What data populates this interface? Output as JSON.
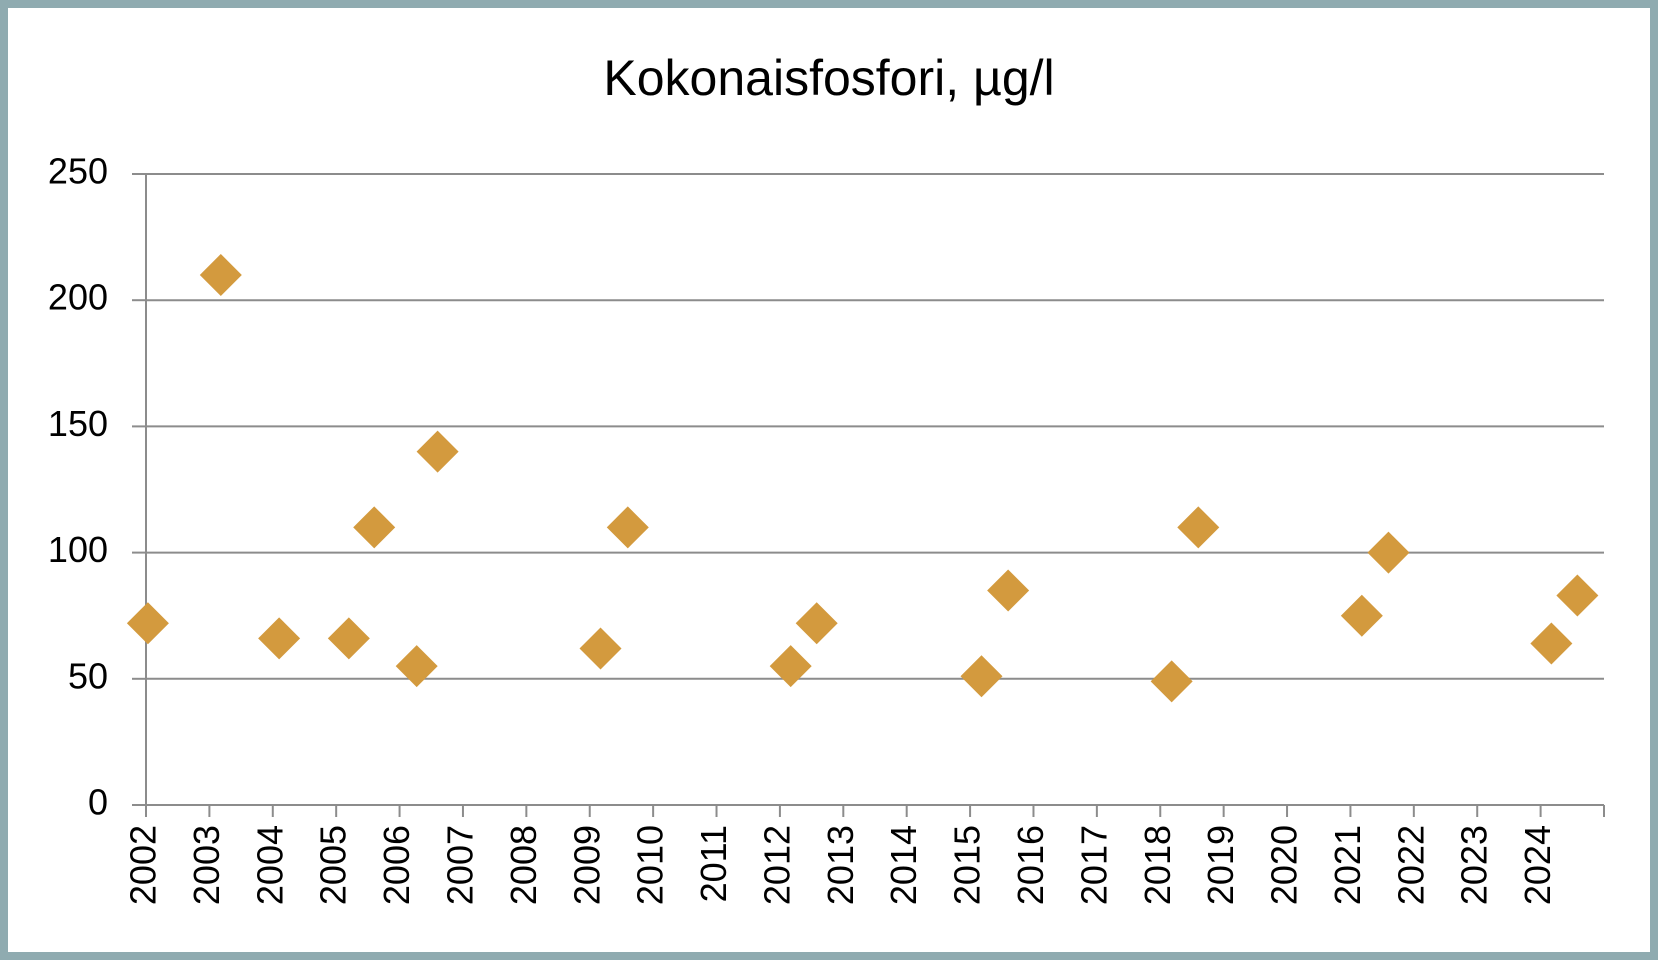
{
  "chart_data": {
    "type": "scatter",
    "title": "Kokonaisfosfori, µg/l",
    "series": [
      {
        "name": "Kokonaisfosfori",
        "color": "#d39a3e",
        "x": [
          2002.03,
          2003.18,
          2004.1,
          2005.2,
          2005.6,
          2006.27,
          2006.6,
          2009.17,
          2009.6,
          2012.17,
          2012.58,
          2015.18,
          2015.6,
          2018.18,
          2018.6,
          2021.18,
          2021.6,
          2024.17,
          2024.58
        ],
        "values": [
          72,
          210,
          66,
          66,
          110,
          55,
          140,
          62,
          110,
          55,
          72,
          51,
          85,
          49,
          110,
          75,
          100,
          64,
          83
        ]
      }
    ],
    "xlim": [
      2002,
      2025
    ],
    "xticks": [
      2002,
      2003,
      2004,
      2005,
      2006,
      2007,
      2008,
      2009,
      2010,
      2011,
      2012,
      2013,
      2014,
      2015,
      2016,
      2017,
      2018,
      2019,
      2020,
      2021,
      2022,
      2023,
      2024
    ],
    "ylim": [
      0,
      250
    ],
    "yticks": [
      0,
      50,
      100,
      150,
      200,
      250
    ],
    "grid": true
  }
}
